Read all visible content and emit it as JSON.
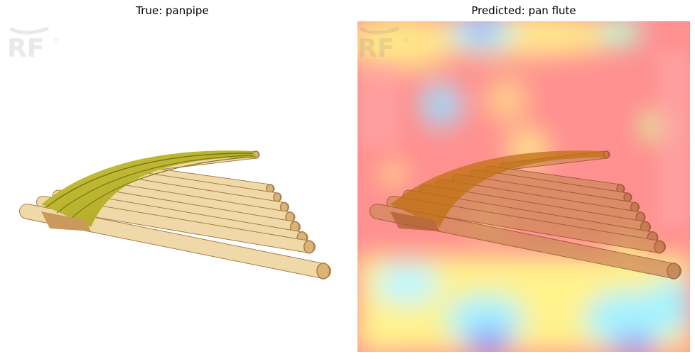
{
  "panels": {
    "left": {
      "title": "True: panpipe"
    },
    "right": {
      "title": "Predicted: pan flute"
    }
  },
  "watermark": {
    "text": "RF",
    "mark": "®"
  },
  "colors": {
    "bamboo_light": "#f0d9a8",
    "bamboo_mid": "#d9b377",
    "bamboo_dark": "#a87c43",
    "band_yellow": "#c9c43a",
    "band_olive": "#8f8a1e",
    "heat_red": "#ff8a8a",
    "heat_yellow": "#fff28a",
    "heat_cyan": "#a8f5ff",
    "heat_blue": "#9aa6ff"
  }
}
